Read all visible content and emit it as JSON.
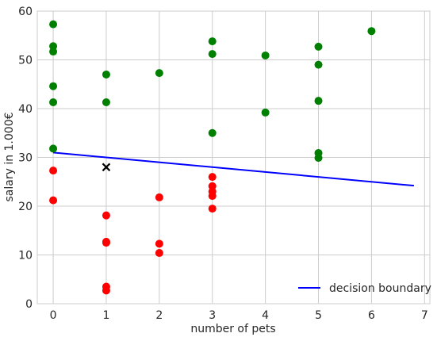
{
  "chart_data": {
    "type": "scatter",
    "title": "",
    "xlabel": "number of pets",
    "ylabel": "salary in 1.000€",
    "xlim": [
      -0.3,
      7.1
    ],
    "ylim": [
      0,
      60
    ],
    "x_ticks": [
      "0",
      "1",
      "2",
      "3",
      "4",
      "5",
      "6",
      "7"
    ],
    "y_ticks": [
      "0",
      "10",
      "20",
      "30",
      "40",
      "50",
      "60"
    ],
    "grid": true,
    "legend_position": "bottom-right",
    "series": [
      {
        "color": "#008000",
        "marker": "circle",
        "points": [
          [
            0,
            57.3
          ],
          [
            0,
            52.8
          ],
          [
            0,
            51.7
          ],
          [
            0,
            44.6
          ],
          [
            0,
            41.3
          ],
          [
            0,
            31.8
          ],
          [
            1,
            47.0
          ],
          [
            1,
            41.3
          ],
          [
            2,
            47.3
          ],
          [
            3,
            53.8
          ],
          [
            3,
            51.2
          ],
          [
            3,
            35.0
          ],
          [
            4,
            50.9
          ],
          [
            4,
            39.2
          ],
          [
            5,
            52.7
          ],
          [
            5,
            49.0
          ],
          [
            5,
            41.6
          ],
          [
            5,
            30.9
          ],
          [
            5,
            29.9
          ],
          [
            6,
            55.9
          ]
        ]
      },
      {
        "color": "#ff0000",
        "marker": "circle",
        "points": [
          [
            0,
            27.3
          ],
          [
            0,
            21.2
          ],
          [
            1,
            18.1
          ],
          [
            1,
            12.7
          ],
          [
            1,
            12.5
          ],
          [
            1,
            3.5
          ],
          [
            1,
            2.7
          ],
          [
            2,
            21.8
          ],
          [
            2,
            12.3
          ],
          [
            2,
            10.4
          ],
          [
            3,
            26.0
          ],
          [
            3,
            24.1
          ],
          [
            3,
            23.0
          ],
          [
            3,
            22.1
          ],
          [
            3,
            19.5
          ]
        ]
      },
      {
        "color": "#000000",
        "marker": "x",
        "points": [
          [
            1,
            28.0
          ]
        ]
      }
    ],
    "lines": [
      {
        "name": "decision boundary",
        "color": "#0000ff",
        "x": [
          0,
          6.8
        ],
        "y": [
          31.0,
          24.2
        ]
      }
    ]
  }
}
